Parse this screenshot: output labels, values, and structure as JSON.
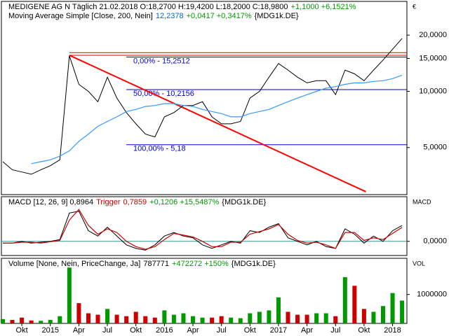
{
  "chart_data": [
    {
      "type": "line",
      "log_scale": true,
      "title_parts": [
        {
          "text": "MEDIGENE AG N Täglich  21.02.2018 O:18,2700 H:19,4200 L:18,2000 C:18,9800",
          "color": "#000000"
        },
        {
          "text": "+1,1000 +6,1521%",
          "color": "#009900"
        }
      ],
      "legend_parts": [
        {
          "text": "Moving Average Simple [Close, 200, Nein]",
          "color": "#000000"
        },
        {
          "text": "12,2378",
          "color": "#0066cc"
        },
        {
          "text": "+0,0417 +0,3417%",
          "color": "#009900"
        },
        {
          "text": "{MDG1k.DE}",
          "color": "#000000"
        }
      ],
      "axis_label": "€",
      "categories": [
        null,
        null,
        "Okt",
        null,
        null,
        "2015",
        null,
        null,
        "Apr",
        null,
        null,
        "Jul",
        null,
        null,
        "Okt",
        null,
        null,
        "2016",
        null,
        null,
        "Apr",
        null,
        null,
        "Jul",
        null,
        null,
        "Okt",
        null,
        null,
        "2017",
        null,
        null,
        "Apr",
        null,
        null,
        "Jul",
        null,
        null,
        "Okt",
        null,
        null,
        "2018",
        null
      ],
      "series": [
        {
          "name": "MEDIGENE AG N",
          "color": "#000000",
          "values": [
            4.2,
            3.8,
            3.7,
            3.6,
            3.8,
            4.0,
            4.3,
            15.5,
            10.9,
            10.0,
            8.8,
            11.9,
            9.2,
            7.7,
            6.7,
            5.9,
            5.7,
            7.3,
            7.7,
            8.4,
            8.4,
            8.8,
            7.3,
            6.7,
            6.7,
            6.9,
            9.2,
            10.0,
            11.9,
            14.1,
            13.0,
            11.9,
            11.1,
            11.4,
            11.4,
            9.6,
            13.0,
            12.4,
            11.4,
            13.0,
            14.7,
            16.8,
            19.2
          ]
        },
        {
          "name": "Moving Average Simple",
          "color": "#3399ff",
          "values": [
            null,
            null,
            null,
            4.1,
            4.2,
            4.3,
            4.5,
            4.8,
            5.4,
            5.9,
            6.5,
            6.9,
            7.3,
            7.8,
            8.0,
            8.3,
            8.4,
            8.6,
            8.6,
            8.4,
            8.3,
            8.0,
            7.8,
            7.6,
            7.3,
            7.3,
            7.6,
            7.8,
            8.0,
            8.4,
            8.8,
            9.2,
            9.6,
            10.0,
            10.4,
            10.6,
            10.9,
            11.1,
            11.1,
            11.3,
            11.4,
            11.7,
            12.2
          ]
        }
      ],
      "levels": [
        {
          "value": 15.2512,
          "label": "0,00% - 15,2512"
        },
        {
          "value": 10.2156,
          "label": "50,00% - 10,2156"
        },
        {
          "value": 5.18,
          "label": "100,00% - 5,18"
        }
      ],
      "level_color": "#0000cc",
      "hlines": [
        16.1,
        15.6
      ],
      "hline_color": "#cc0000",
      "trendline": {
        "x": [
          7,
          38.2
        ],
        "values": [
          15.6,
          2.9
        ],
        "color": "#ff0000"
      },
      "ylim": [
        2.8,
        30.3
      ],
      "yticks": [
        {
          "value": 5,
          "label": "5,0000"
        },
        {
          "value": 10,
          "label": "10,0000"
        },
        {
          "value": 15,
          "label": "15,0000"
        },
        {
          "value": 20,
          "label": "20,0000"
        }
      ]
    },
    {
      "type": "line",
      "title_parts": [
        {
          "text": "MACD [12, 26, 9] 0,8964",
          "color": "#000000"
        },
        {
          "text": "Trigger",
          "color": "#cc0000"
        },
        {
          "text": "0,7859",
          "color": "#cc0000"
        },
        {
          "text": "+0,1206 +15,5487%",
          "color": "#009900"
        },
        {
          "text": "{MDG1k.DE}",
          "color": "#000000"
        }
      ],
      "axis_label": "MACD",
      "series": [
        {
          "name": "MACD",
          "color": "#000000",
          "values": [
            -0.1,
            -0.1,
            0,
            -0.1,
            -0.05,
            0,
            0.1,
            1.6,
            1.7,
            0.6,
            0.3,
            0.8,
            0.3,
            -0.2,
            -0.4,
            -0.5,
            -0.2,
            0.3,
            0.5,
            0.3,
            0.2,
            -0.2,
            -0.4,
            -0.2,
            0,
            -0.1,
            0.6,
            0.5,
            0.8,
            1.0,
            0.2,
            0,
            -0.2,
            0,
            -0.3,
            -0.4,
            0.7,
            0.4,
            -0.1,
            0.3,
            0,
            0.6,
            0.8964
          ]
        },
        {
          "name": "Trigger",
          "color": "#cc0000",
          "values": [
            -0.1,
            -0.1,
            -0.05,
            -0.05,
            -0.1,
            -0.02,
            0.05,
            1.2,
            1.8,
            0.9,
            0.4,
            0.7,
            0.5,
            0,
            -0.3,
            -0.45,
            -0.3,
            0.1,
            0.45,
            0.35,
            0.25,
            0,
            -0.3,
            -0.3,
            -0.05,
            -0.05,
            0.4,
            0.55,
            0.7,
            0.95,
            0.4,
            0.05,
            -0.1,
            -0.05,
            -0.2,
            -0.4,
            0.5,
            0.5,
            0.05,
            0.2,
            0.1,
            0.45,
            0.7859
          ]
        }
      ],
      "zero_color": "#339999",
      "ylim": [
        -0.8,
        2.52
      ],
      "yticks": [
        {
          "value": 0,
          "label": "0,0000"
        }
      ]
    },
    {
      "type": "bar",
      "title_parts": [
        {
          "text": "Volume [None, Nein, PriceChange, Ja]",
          "color": "#000000"
        },
        {
          "text": "787771",
          "color": "#000000"
        },
        {
          "text": "+472272 +150%",
          "color": "#009900"
        },
        {
          "text": "{MDG1k.DE}",
          "color": "#000000"
        }
      ],
      "axis_label": "VOL",
      "up_color": "#009900",
      "down_color": "#cc0000",
      "values": [
        150000,
        120000,
        200000,
        100000,
        90000,
        120000,
        250000,
        1930000,
        700000,
        350000,
        300000,
        500000,
        300000,
        250000,
        400000,
        250000,
        200000,
        450000,
        300000,
        350000,
        250000,
        200000,
        200000,
        250000,
        200000,
        180000,
        350000,
        400000,
        450000,
        900000,
        400000,
        300000,
        300000,
        350000,
        350000,
        250000,
        1600000,
        1300000,
        500000,
        400000,
        600000,
        1050000,
        787771
      ],
      "ylim": [
        0,
        2250000
      ],
      "yticks": [
        1000000
      ]
    }
  ]
}
